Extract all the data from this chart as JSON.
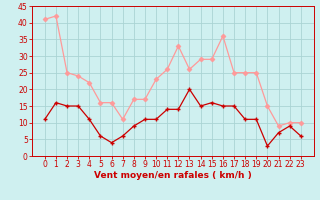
{
  "x": [
    0,
    1,
    2,
    3,
    4,
    5,
    6,
    7,
    8,
    9,
    10,
    11,
    12,
    13,
    14,
    15,
    16,
    17,
    18,
    19,
    20,
    21,
    22,
    23
  ],
  "wind_mean": [
    11,
    16,
    15,
    15,
    11,
    6,
    4,
    6,
    9,
    11,
    11,
    14,
    14,
    20,
    15,
    16,
    15,
    15,
    11,
    11,
    3,
    7,
    9,
    6
  ],
  "wind_gust": [
    41,
    42,
    25,
    24,
    22,
    16,
    16,
    11,
    17,
    17,
    23,
    26,
    33,
    26,
    29,
    29,
    36,
    25,
    25,
    25,
    15,
    9,
    10,
    10
  ],
  "bg_color": "#cff0f0",
  "grid_color": "#aad4d4",
  "mean_color": "#cc0000",
  "gust_color": "#ff9999",
  "xlabel": "Vent moyen/en rafales ( km/h )",
  "ylim": [
    0,
    45
  ],
  "yticks": [
    0,
    5,
    10,
    15,
    20,
    25,
    30,
    35,
    40,
    45
  ],
  "xticks": [
    0,
    1,
    2,
    3,
    4,
    5,
    6,
    7,
    8,
    9,
    10,
    11,
    12,
    13,
    14,
    15,
    16,
    17,
    18,
    19,
    20,
    21,
    22,
    23
  ],
  "axis_color": "#cc0000",
  "tick_color": "#cc0000",
  "label_color": "#cc0000",
  "mean_marker": "+",
  "gust_marker": "D",
  "marker_size_mean": 3,
  "marker_size_gust": 2.5,
  "line_width": 0.9,
  "tick_fontsize": 5.5,
  "xlabel_fontsize": 6.5
}
